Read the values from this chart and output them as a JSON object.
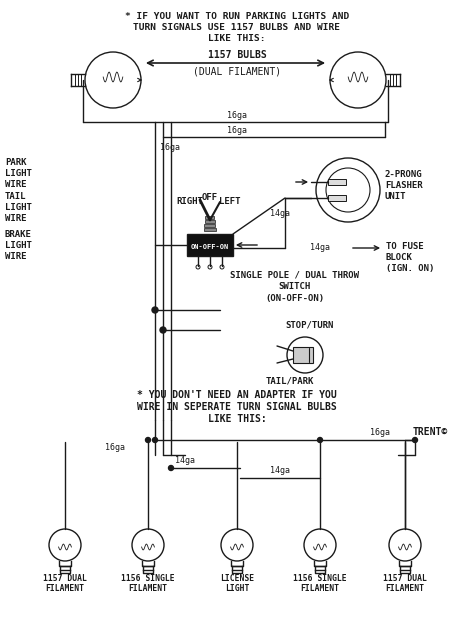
{
  "bg_color": "#ffffff",
  "line_color": "#1a1a1a",
  "title1": "* IF YOU WANT TO RUN PARKING LIGHTS AND",
  "title2": "TURN SIGNALS USE 1157 BULBS AND WIRE",
  "title3": "LIKE THIS:",
  "label_1157": "1157 BULBS",
  "label_dual": "(DUAL FILAMENT)",
  "label_park_wire": "PARK\nLIGHT\nWIRE",
  "label_tail_wire": "TAIL\nLIGHT\nWIRE",
  "label_brake_wire": "BRAKE\nLIGHT\nWIRE",
  "label_right": "RIGHT",
  "label_off": "OFF",
  "label_left": "LEFT",
  "label_onoffon": "ON-OFF-ON",
  "label_flasher": "2-PRONG\nFLASHER\nUNIT",
  "label_fuse": "TO FUSE\nBLOCK\n(IGN. ON)",
  "label_switch": "SINGLE POLE / DUAL THROW\nSWITCH\n(ON-OFF-ON)",
  "label_stopturn": "STOP/TURN",
  "label_tailpark": "TAIL/PARK",
  "label_note2_1": "* YOU DON'T NEED AN ADAPTER IF YOU",
  "label_note2_2": "WIRE IN SEPERATE TURN SIGNAL BULBS",
  "label_note2_3": "LIKE THIS:",
  "label_trent": "TRENT©",
  "bulb_labels": [
    "1157 DUAL\nFILAMENT",
    "1156 SINGLE\nFILAMENT",
    "LICENSE\nLIGHT",
    "1156 SINGLE\nFILAMENT",
    "1157 DUAL\nFILAMENT"
  ]
}
